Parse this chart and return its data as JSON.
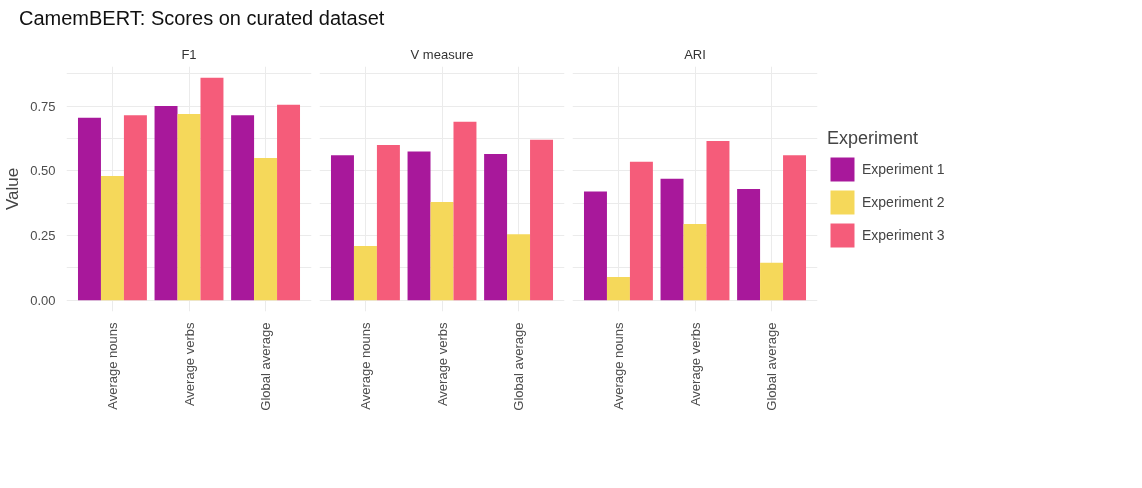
{
  "chart_data": [
    {
      "type": "bar",
      "title": "CamemBERT: Scores on curated dataset",
      "subtitle": "F1",
      "ylabel": "Value",
      "categories": [
        "Average nouns",
        "Average verbs",
        "Global average"
      ],
      "series": [
        {
          "color": "#a8189b",
          "values": [
            0.705,
            0.75,
            0.715
          ]
        },
        {
          "color": "#f5d85a",
          "values": [
            0.48,
            0.72,
            0.55
          ]
        },
        {
          "color": "#f55c7a",
          "values": [
            0.715,
            0.86,
            0.755
          ]
        }
      ],
      "ylim": [
        -0.043,
        0.903
      ],
      "yticks": [
        {
          "value": 0,
          "label": "0.00"
        },
        {
          "value": 0.125,
          "label": null
        },
        {
          "value": 0.25,
          "label": "0.25"
        },
        {
          "value": 0.375,
          "label": null
        },
        {
          "value": 0.5,
          "label": "0.50"
        },
        {
          "value": 0.625,
          "label": null
        },
        {
          "value": 0.75,
          "label": "0.75"
        },
        {
          "value": 0.875,
          "label": null
        }
      ],
      "grid": true
    },
    {
      "type": "bar",
      "subtitle": "V measure",
      "categories": [
        "Average nouns",
        "Average verbs",
        "Global average"
      ],
      "series": [
        {
          "color": "#a8189b",
          "values": [
            0.56,
            0.575,
            0.565
          ]
        },
        {
          "color": "#f5d85a",
          "values": [
            0.21,
            0.38,
            0.255
          ]
        },
        {
          "color": "#f55c7a",
          "values": [
            0.6,
            0.69,
            0.62
          ]
        }
      ],
      "ylim": [
        -0.043,
        0.903
      ],
      "yticks": [
        0,
        0.125,
        0.25,
        0.375,
        0.5,
        0.625,
        0.75,
        0.875
      ],
      "grid": true,
      "tick_labels": "x"
    },
    {
      "type": "bar",
      "subtitle": "ARI",
      "legend_title": "Experiment",
      "categories": [
        "Average nouns",
        "Average verbs",
        "Global average"
      ],
      "series": [
        {
          "name": "Experiment 1",
          "color": "#a8189b",
          "values": [
            0.42,
            0.47,
            0.43
          ]
        },
        {
          "name": "Experiment 2",
          "color": "#f5d85a",
          "values": [
            0.09,
            0.295,
            0.145
          ]
        },
        {
          "name": "Experiment 3",
          "color": "#f55c7a",
          "values": [
            0.535,
            0.615,
            0.56
          ]
        }
      ],
      "ylim": [
        -0.043,
        0.903
      ],
      "yticks": [
        0,
        0.125,
        0.25,
        0.375,
        0.5,
        0.625,
        0.75,
        0.875
      ],
      "grid": true,
      "legend": "right",
      "tick_labels": "x"
    }
  ]
}
